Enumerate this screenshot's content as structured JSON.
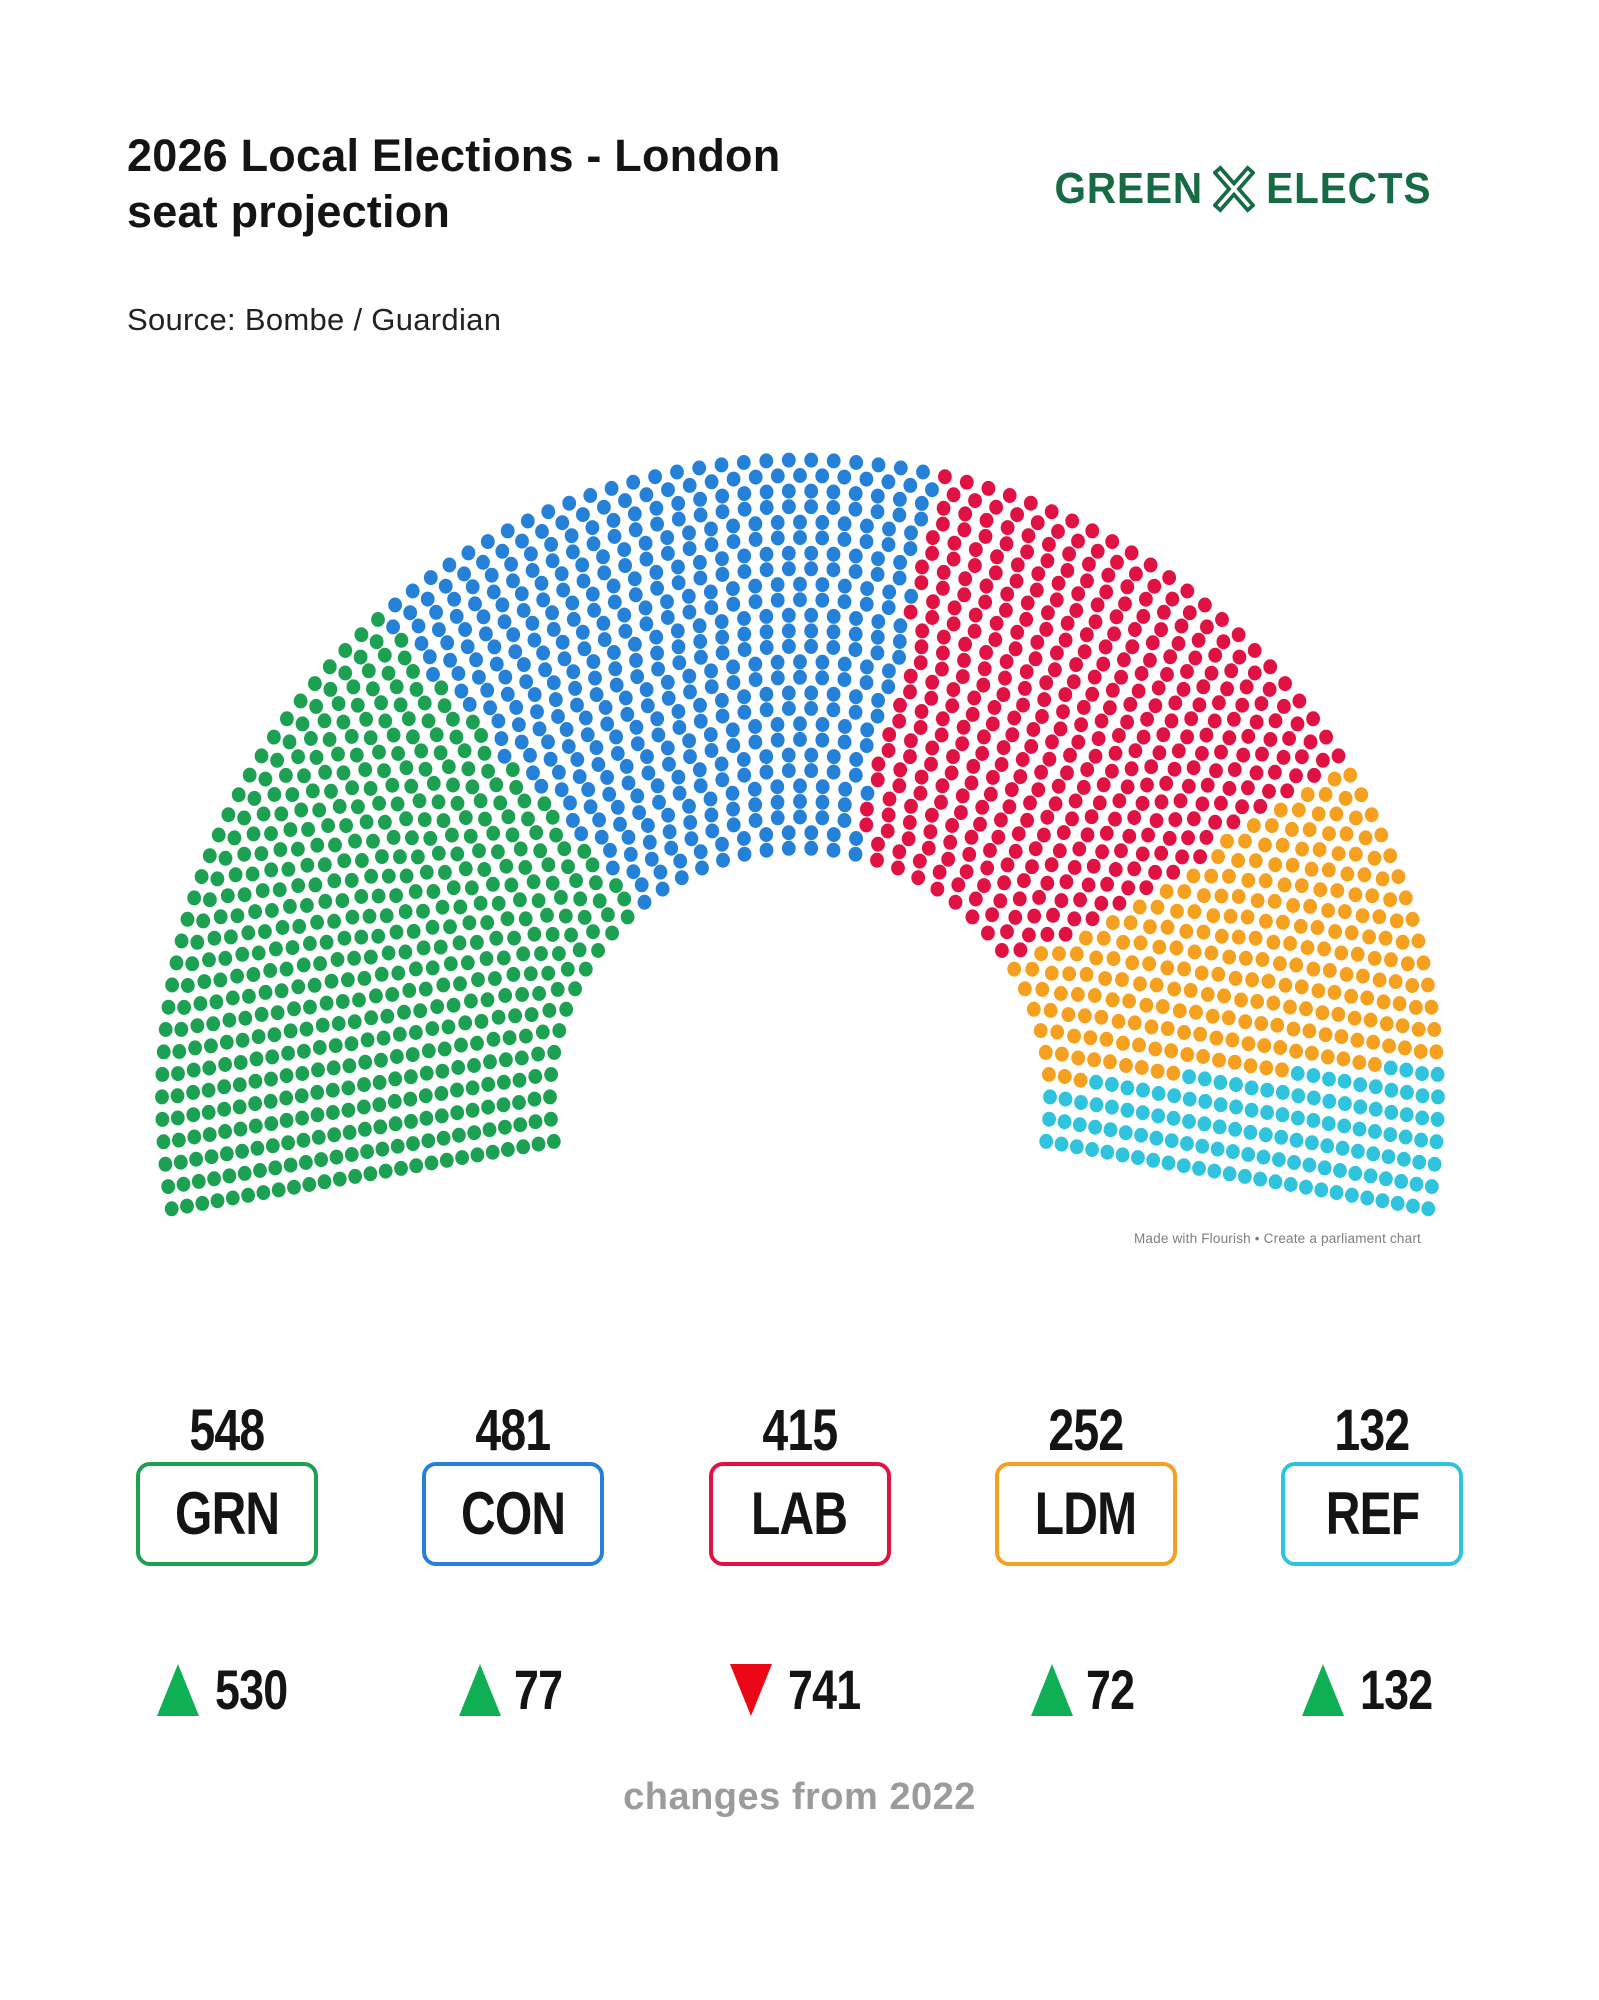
{
  "header": {
    "title_lines": [
      "2026 Local Elections - London",
      "seat projection"
    ],
    "source": "Source: Bombe / Guardian",
    "logo": {
      "part1": "GREEN",
      "part2": "ELECTS",
      "color": "#176B43",
      "icon": "x-mark-icon"
    }
  },
  "chart_data": {
    "type": "parliament",
    "title": "2026 Local Elections - London seat projection",
    "total_seats": 1828,
    "layout_hint": "hemicycle of dots, ~26 concentric rows, ~200 degree span, filled left-to-right by party",
    "parties": [
      {
        "code": "GRN",
        "seats": 548,
        "change": 530,
        "direction": "up",
        "color": "#1CA152"
      },
      {
        "code": "CON",
        "seats": 481,
        "change": 77,
        "direction": "up",
        "color": "#2580D8"
      },
      {
        "code": "LAB",
        "seats": 415,
        "change": 741,
        "direction": "down",
        "color": "#E01243"
      },
      {
        "code": "LDM",
        "seats": 252,
        "change": 72,
        "direction": "up",
        "color": "#F5A01F"
      },
      {
        "code": "REF",
        "seats": 132,
        "change": 132,
        "direction": "up",
        "color": "#30C3DE"
      }
    ],
    "arrow_colors": {
      "up": "#0FAF54",
      "down": "#EC0716"
    },
    "caption": "changes from 2022"
  },
  "watermark": "Made with Flourish • Create a parliament chart"
}
